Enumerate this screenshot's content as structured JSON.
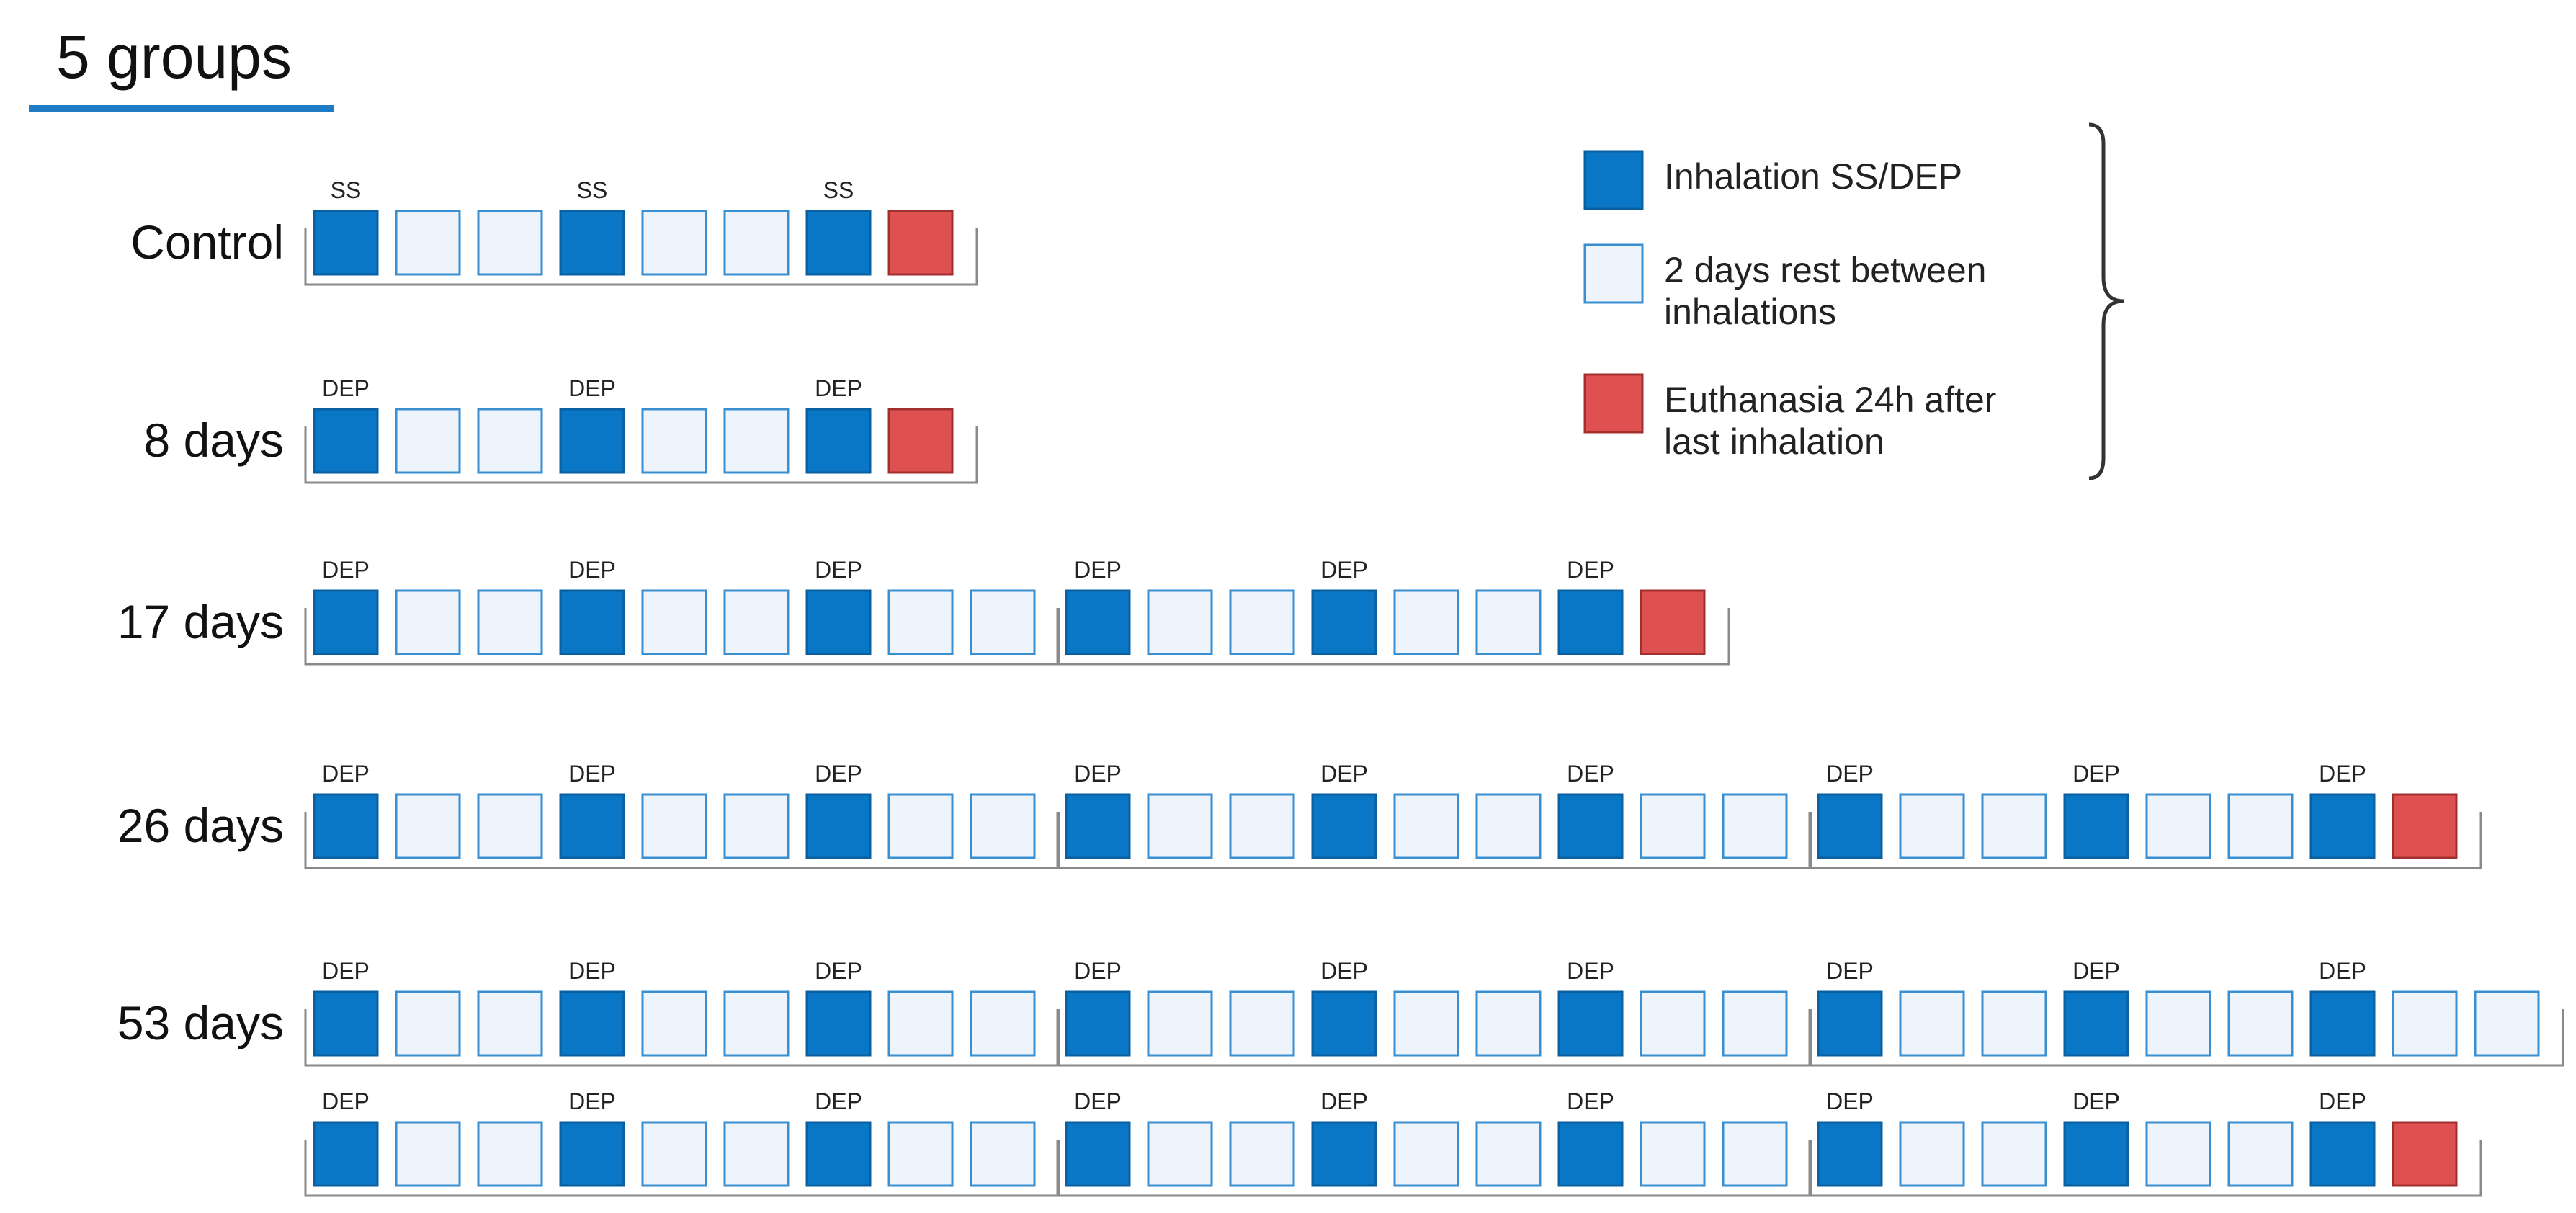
{
  "title": "5 groups",
  "colors": {
    "inhalation": "#0a77c6",
    "inhalation_border": "#0a5fa0",
    "rest": "#eef4fc",
    "rest_border": "#3a8fd0",
    "euthanasia": "#df5050",
    "euthanasia_border": "#a03030",
    "underline": "#1f7cc4",
    "bracket": "#333333"
  },
  "legend": {
    "items": [
      {
        "kind": "inhalation",
        "lines": [
          "Inhalation SS/DEP"
        ]
      },
      {
        "kind": "rest",
        "lines": [
          "2 days rest between",
          "inhalations"
        ]
      },
      {
        "kind": "euthanasia",
        "lines": [
          "Euthanasia 24h after",
          "last inhalation"
        ]
      }
    ]
  },
  "groups": [
    {
      "label": "Control",
      "tag": "SS",
      "timelines": [
        [
          "I",
          "R",
          "R",
          "I",
          "R",
          "R",
          "I",
          "E"
        ]
      ]
    },
    {
      "label": "8 days",
      "tag": "DEP",
      "timelines": [
        [
          "I",
          "R",
          "R",
          "I",
          "R",
          "R",
          "I",
          "E"
        ]
      ]
    },
    {
      "label": "17 days",
      "tag": "DEP",
      "timelines": [
        [
          "I",
          "R",
          "R",
          "I",
          "R",
          "R",
          "I",
          "R",
          "R"
        ],
        [
          "I",
          "R",
          "R",
          "I",
          "R",
          "R",
          "I",
          "E"
        ]
      ]
    },
    {
      "label": "26 days",
      "tag": "DEP",
      "timelines": [
        [
          "I",
          "R",
          "R",
          "I",
          "R",
          "R",
          "I",
          "R",
          "R"
        ],
        [
          "I",
          "R",
          "R",
          "I",
          "R",
          "R",
          "I",
          "R",
          "R"
        ],
        [
          "I",
          "R",
          "R",
          "I",
          "R",
          "R",
          "I",
          "E"
        ]
      ]
    },
    {
      "label": "53 days",
      "tag": "DEP",
      "timelines": [
        [
          "I",
          "R",
          "R",
          "I",
          "R",
          "R",
          "I",
          "R",
          "R"
        ],
        [
          "I",
          "R",
          "R",
          "I",
          "R",
          "R",
          "I",
          "R",
          "R"
        ],
        [
          "I",
          "R",
          "R",
          "I",
          "R",
          "R",
          "I",
          "R",
          "R"
        ]
      ]
    },
    {
      "label": "",
      "tag": "DEP",
      "timelines": [
        [
          "I",
          "R",
          "R",
          "I",
          "R",
          "R",
          "I",
          "R",
          "R"
        ],
        [
          "I",
          "R",
          "R",
          "I",
          "R",
          "R",
          "I",
          "R",
          "R"
        ],
        [
          "I",
          "R",
          "R",
          "I",
          "R",
          "R",
          "I",
          "E"
        ]
      ]
    }
  ]
}
